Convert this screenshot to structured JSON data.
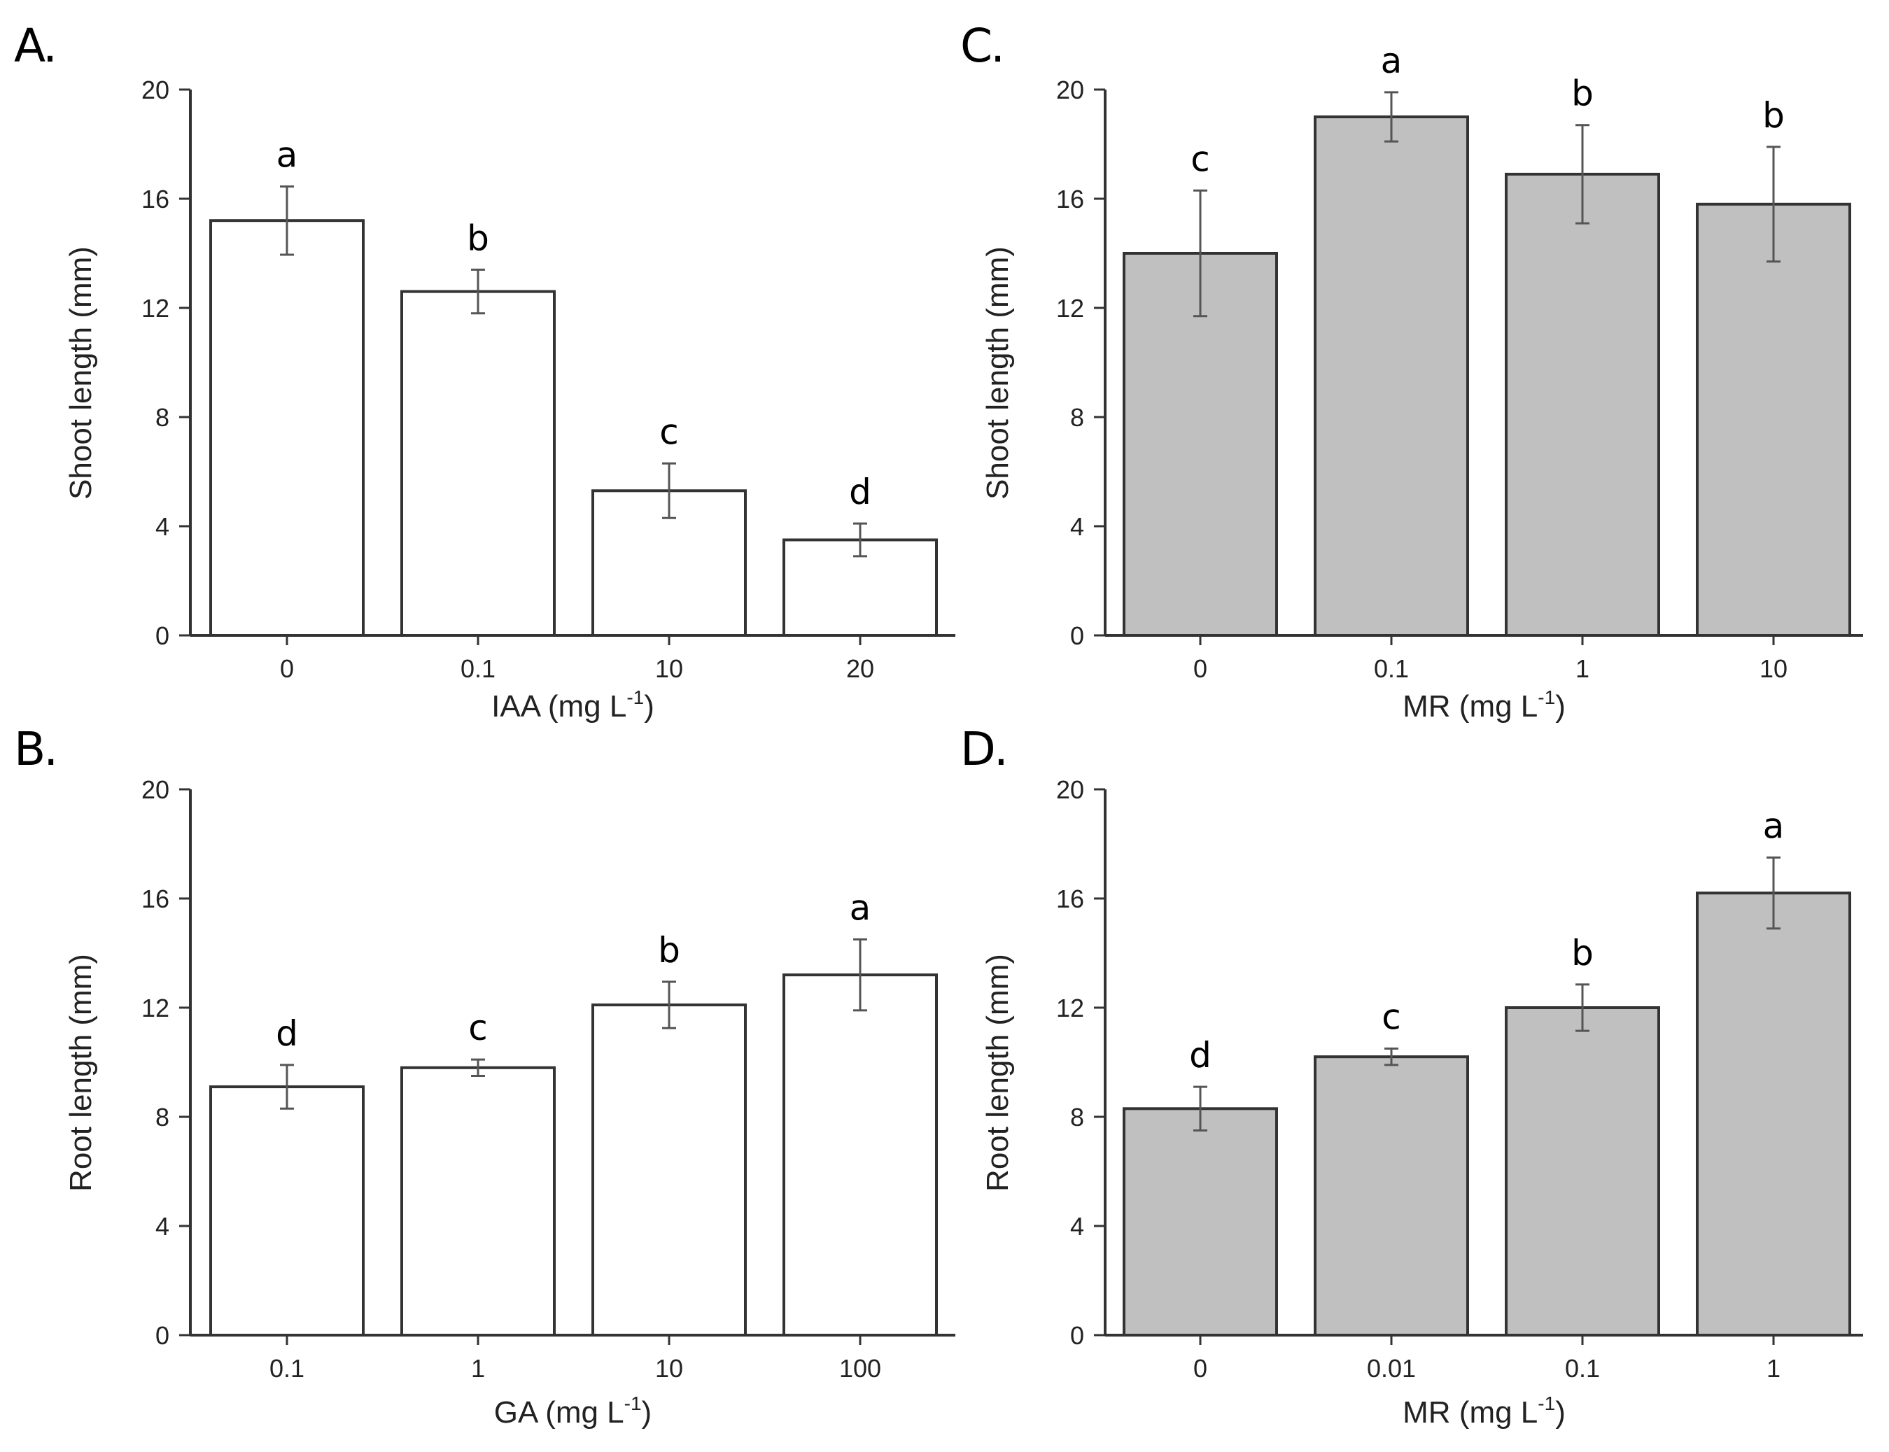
{
  "chart_data": [
    {
      "panel": "A.",
      "type": "bar",
      "categories": [
        "0",
        "0.1",
        "10",
        "20"
      ],
      "values": [
        15.2,
        12.6,
        5.3,
        3.5
      ],
      "errors": [
        1.25,
        0.8,
        1.0,
        0.6
      ],
      "letters": [
        "a",
        "b",
        "c",
        "d"
      ],
      "ylabel": "Shoot length (mm)",
      "xlabel": "IAA (mg L",
      "xlabel_sup": "-1",
      "xlabel_end": ")",
      "ylim": [
        0,
        20
      ],
      "yticks": [
        0,
        4,
        8,
        12,
        16,
        20
      ],
      "bar_color": "#ffffff"
    },
    {
      "panel": "B.",
      "type": "bar",
      "categories": [
        "0.1",
        "1",
        "10",
        "100"
      ],
      "values": [
        9.1,
        9.8,
        12.1,
        13.2
      ],
      "errors": [
        0.8,
        0.3,
        0.85,
        1.3
      ],
      "letters": [
        "d",
        "c",
        "b",
        "a"
      ],
      "ylabel": "Root length (mm)",
      "xlabel": "GA (mg L",
      "xlabel_sup": "-1",
      "xlabel_end": ")",
      "ylim": [
        0,
        20
      ],
      "yticks": [
        0,
        4,
        8,
        12,
        16,
        20
      ],
      "bar_color": "#ffffff"
    },
    {
      "panel": "C.",
      "type": "bar",
      "categories": [
        "0",
        "0.1",
        "1",
        "10"
      ],
      "values": [
        14.0,
        19.0,
        16.9,
        15.8
      ],
      "errors": [
        2.3,
        0.9,
        1.8,
        2.1
      ],
      "letters": [
        "c",
        "a",
        "b",
        "b"
      ],
      "ylabel": "Shoot length (mm)",
      "xlabel": "MR (mg L",
      "xlabel_sup": "-1",
      "xlabel_end": ")",
      "ylim": [
        0,
        20
      ],
      "yticks": [
        0,
        4,
        8,
        12,
        16,
        20
      ],
      "bar_color": "#c0c0c0"
    },
    {
      "panel": "D.",
      "type": "bar",
      "categories": [
        "0",
        "0.01",
        "0.1",
        "1"
      ],
      "values": [
        8.3,
        10.2,
        12.0,
        16.2
      ],
      "errors": [
        0.8,
        0.3,
        0.85,
        1.3
      ],
      "letters": [
        "d",
        "c",
        "b",
        "a"
      ],
      "ylabel": "Root length (mm)",
      "xlabel": "MR (mg L",
      "xlabel_sup": "-1",
      "xlabel_end": ")",
      "ylim": [
        0,
        20
      ],
      "yticks": [
        0,
        4,
        8,
        12,
        16,
        20
      ],
      "bar_color": "#c0c0c0"
    }
  ]
}
